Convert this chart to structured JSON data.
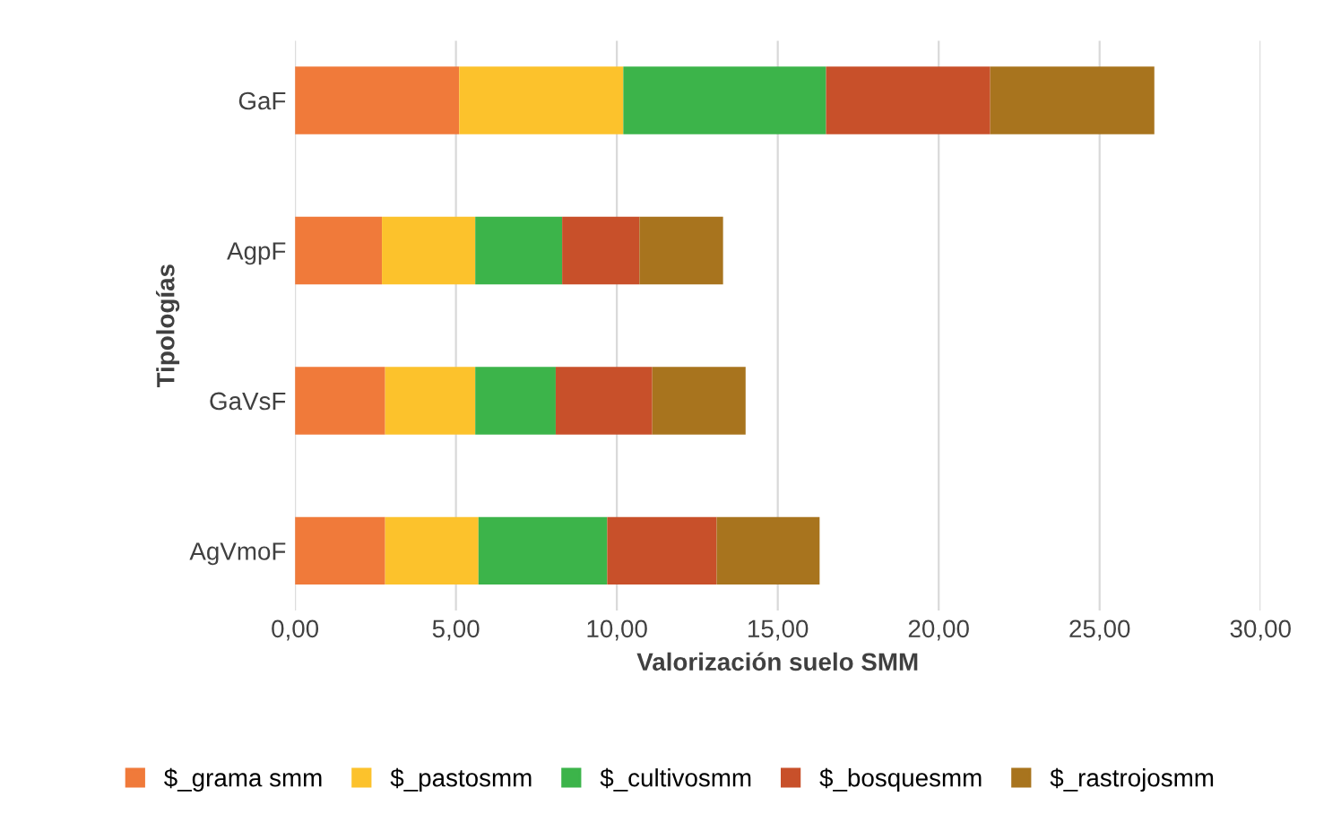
{
  "chart_data": {
    "type": "bar",
    "orientation": "horizontal",
    "stacked": true,
    "categories": [
      "GaF",
      "AgpF",
      "GaVsF",
      "AgVmoF"
    ],
    "series": [
      {
        "name": "$_grama smm",
        "color": "#f07a3a",
        "values": [
          5.1,
          2.7,
          2.8,
          2.8
        ]
      },
      {
        "name": "$_pastosmm",
        "color": "#fcc22c",
        "values": [
          5.1,
          2.9,
          2.8,
          2.9
        ]
      },
      {
        "name": "$_cultivosmm",
        "color": "#3cb44a",
        "values": [
          6.3,
          2.7,
          2.5,
          4.0
        ]
      },
      {
        "name": "$_bosquesmm",
        "color": "#c8502a",
        "values": [
          5.1,
          2.4,
          3.0,
          3.4
        ]
      },
      {
        "name": "$_rastrojosmm",
        "color": "#a8741e",
        "values": [
          5.1,
          2.6,
          2.9,
          3.2
        ]
      }
    ],
    "xlim": [
      0,
      30
    ],
    "xticks": [
      {
        "value": 0,
        "label": "0,00"
      },
      {
        "value": 5,
        "label": "5,00"
      },
      {
        "value": 10,
        "label": "10,00"
      },
      {
        "value": 15,
        "label": "15,00"
      },
      {
        "value": 20,
        "label": "20,00"
      },
      {
        "value": 25,
        "label": "25,00"
      },
      {
        "value": 30,
        "label": "30,00"
      }
    ],
    "xlabel": "Valorización suelo SMM",
    "ylabel": "Tipologías",
    "grid": "x",
    "legend": "bottom"
  }
}
